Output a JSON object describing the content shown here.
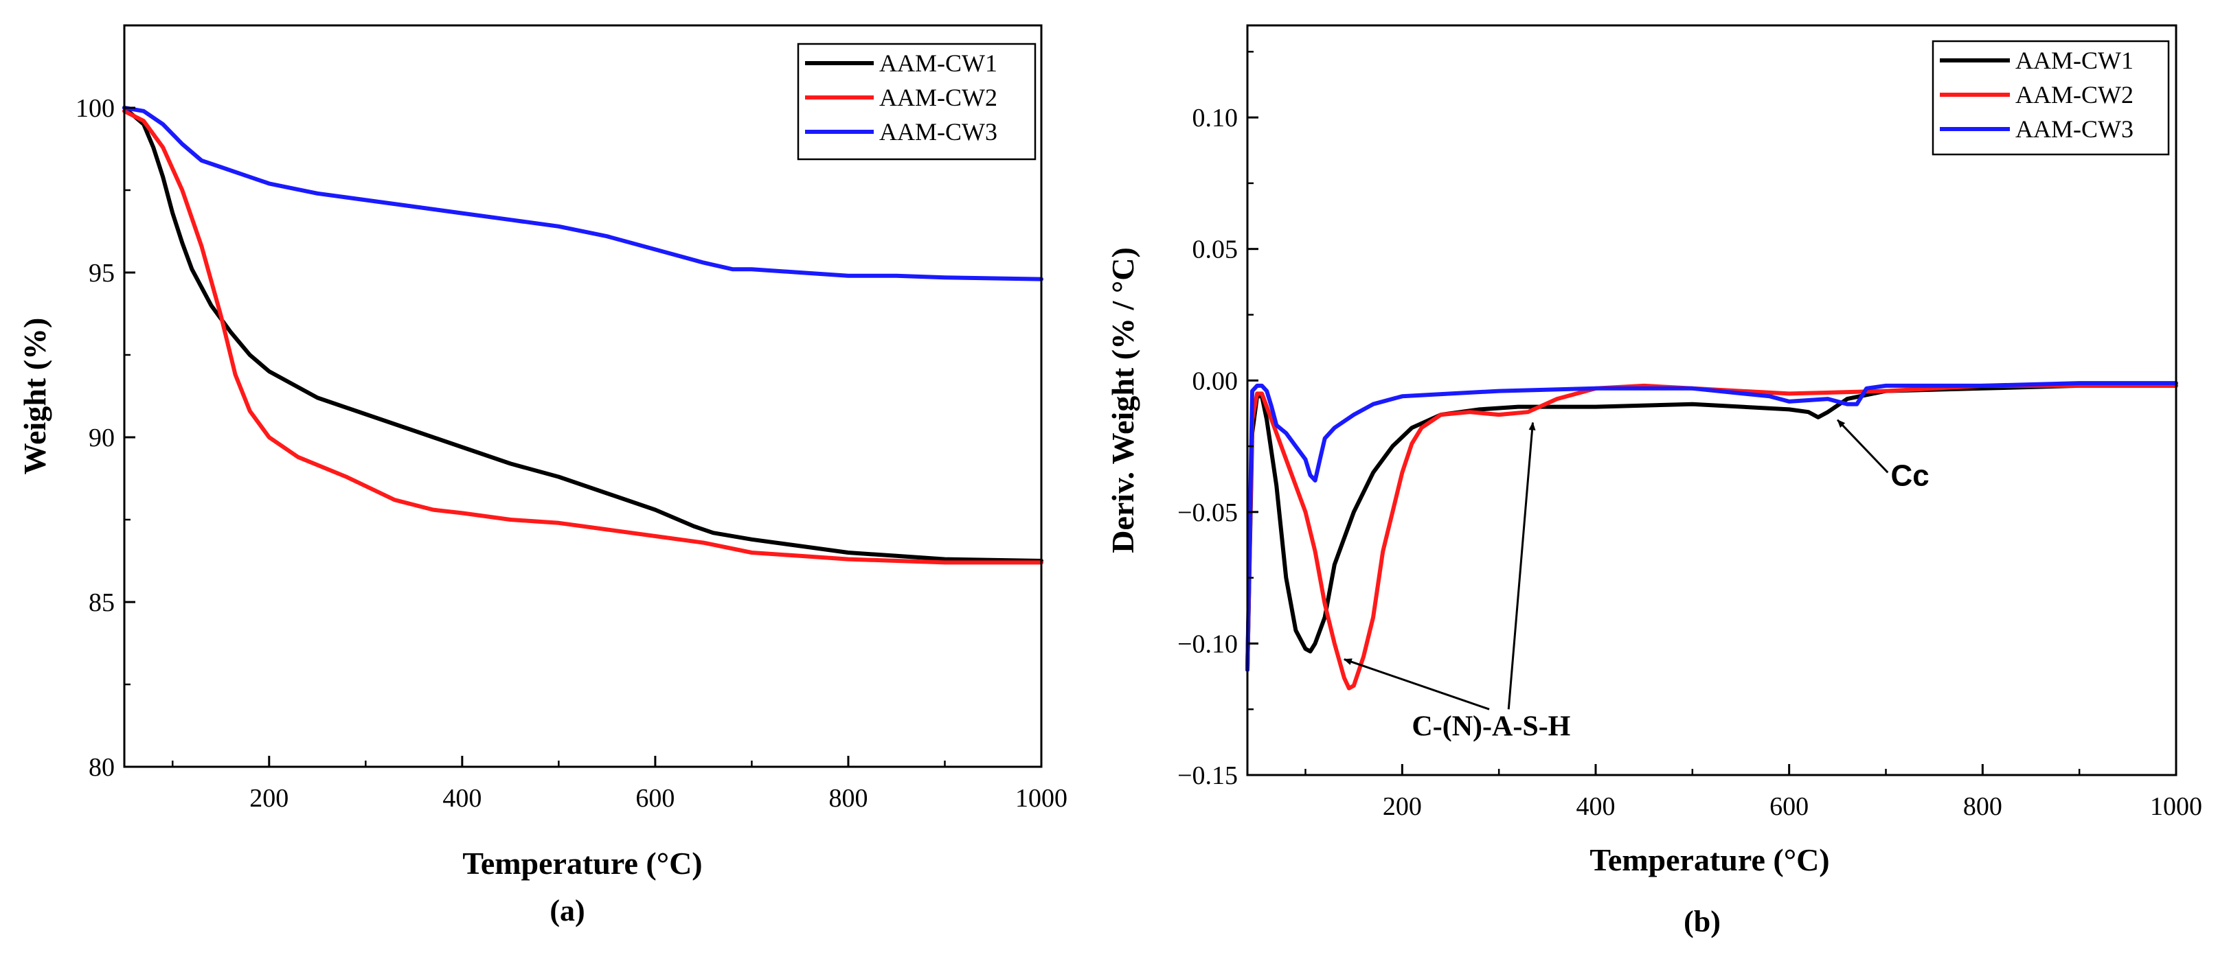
{
  "colors": {
    "series1": "#000000",
    "series2": "#ff1a1a",
    "series3": "#1a1aff"
  },
  "chart_data": [
    {
      "type": "line",
      "panel_label": "(a)",
      "xlabel": "Temperature (°C)",
      "ylabel": "Weight (%)",
      "xlim": [
        50,
        1000
      ],
      "ylim": [
        80,
        102.5
      ],
      "xticks": [
        200,
        400,
        600,
        800,
        1000
      ],
      "yticks": [
        80,
        85,
        90,
        95,
        100
      ],
      "legend_position": "top-right",
      "series": [
        {
          "name": "AAM-CW1",
          "color": "#000000",
          "x": [
            50,
            70,
            80,
            90,
            100,
            110,
            120,
            140,
            160,
            180,
            200,
            250,
            300,
            350,
            400,
            450,
            500,
            550,
            600,
            640,
            660,
            700,
            750,
            800,
            850,
            900,
            1000
          ],
          "y": [
            100,
            99.5,
            98.8,
            97.9,
            96.8,
            95.9,
            95.1,
            94,
            93.2,
            92.5,
            92,
            91.2,
            90.7,
            90.2,
            89.7,
            89.2,
            88.8,
            88.3,
            87.8,
            87.3,
            87.1,
            86.9,
            86.7,
            86.5,
            86.4,
            86.3,
            86.25
          ]
        },
        {
          "name": "AAM-CW2",
          "color": "#ff1a1a",
          "x": [
            50,
            70,
            90,
            110,
            130,
            150,
            165,
            180,
            200,
            230,
            280,
            330,
            370,
            400,
            450,
            500,
            550,
            600,
            650,
            700,
            750,
            800,
            900,
            1000
          ],
          "y": [
            99.9,
            99.6,
            98.8,
            97.5,
            95.8,
            93.7,
            91.9,
            90.8,
            90,
            89.4,
            88.8,
            88.1,
            87.8,
            87.7,
            87.5,
            87.4,
            87.2,
            87,
            86.8,
            86.5,
            86.4,
            86.3,
            86.2,
            86.2
          ]
        },
        {
          "name": "AAM-CW3",
          "color": "#1a1aff",
          "x": [
            50,
            70,
            90,
            110,
            130,
            150,
            180,
            200,
            250,
            300,
            350,
            400,
            450,
            500,
            550,
            600,
            650,
            680,
            700,
            750,
            800,
            850,
            900,
            1000
          ],
          "y": [
            100,
            99.9,
            99.5,
            98.9,
            98.4,
            98.2,
            97.9,
            97.7,
            97.4,
            97.2,
            97,
            96.8,
            96.6,
            96.4,
            96.1,
            95.7,
            95.3,
            95.1,
            95.1,
            95,
            94.9,
            94.9,
            94.85,
            94.8
          ]
        }
      ]
    },
    {
      "type": "line",
      "panel_label": "(b)",
      "xlabel": "Temperature (°C)",
      "ylabel": "Deriv. Weight (% / °C)",
      "xlim": [
        40,
        1000
      ],
      "ylim": [
        -0.15,
        0.135
      ],
      "xticks": [
        200,
        400,
        600,
        800,
        1000
      ],
      "yticks": [
        -0.15,
        -0.1,
        -0.05,
        0.0,
        0.05,
        0.1
      ],
      "ytick_labels": [
        "−0.15",
        "−0.10",
        "−0.05",
        "0.00",
        "0.05",
        "0.10"
      ],
      "legend_position": "top-right",
      "series": [
        {
          "name": "AAM-CW1",
          "color": "#000000",
          "x": [
            40,
            45,
            50,
            55,
            60,
            70,
            80,
            90,
            100,
            105,
            110,
            120,
            130,
            140,
            150,
            170,
            190,
            210,
            240,
            280,
            320,
            400,
            500,
            600,
            620,
            630,
            640,
            660,
            700,
            800,
            900,
            1000
          ],
          "y": [
            -0.11,
            -0.02,
            -0.006,
            -0.006,
            -0.015,
            -0.04,
            -0.075,
            -0.095,
            -0.102,
            -0.103,
            -0.1,
            -0.09,
            -0.07,
            -0.06,
            -0.05,
            -0.035,
            -0.025,
            -0.018,
            -0.013,
            -0.011,
            -0.01,
            -0.01,
            -0.009,
            -0.011,
            -0.012,
            -0.014,
            -0.012,
            -0.007,
            -0.004,
            -0.003,
            -0.002,
            -0.002
          ]
        },
        {
          "name": "AAM-CW2",
          "color": "#ff1a1a",
          "x": [
            40,
            45,
            50,
            55,
            60,
            70,
            80,
            90,
            100,
            110,
            120,
            130,
            140,
            145,
            150,
            160,
            170,
            180,
            190,
            200,
            210,
            220,
            240,
            270,
            300,
            330,
            360,
            400,
            450,
            500,
            600,
            700,
            800,
            900,
            1000
          ],
          "y": [
            -0.11,
            -0.015,
            -0.005,
            -0.005,
            -0.01,
            -0.02,
            -0.03,
            -0.04,
            -0.05,
            -0.065,
            -0.085,
            -0.1,
            -0.113,
            -0.117,
            -0.116,
            -0.105,
            -0.09,
            -0.065,
            -0.05,
            -0.035,
            -0.024,
            -0.018,
            -0.013,
            -0.012,
            -0.013,
            -0.012,
            -0.007,
            -0.003,
            -0.002,
            -0.003,
            -0.005,
            -0.004,
            -0.002,
            -0.002,
            -0.002
          ]
        },
        {
          "name": "AAM-CW3",
          "color": "#1a1aff",
          "x": [
            40,
            45,
            50,
            55,
            60,
            65,
            70,
            80,
            90,
            100,
            105,
            110,
            115,
            120,
            130,
            150,
            170,
            200,
            250,
            300,
            400,
            500,
            580,
            600,
            640,
            660,
            670,
            680,
            700,
            800,
            900,
            1000
          ],
          "y": [
            -0.11,
            -0.004,
            -0.002,
            -0.002,
            -0.004,
            -0.01,
            -0.017,
            -0.02,
            -0.025,
            -0.03,
            -0.036,
            -0.038,
            -0.03,
            -0.022,
            -0.018,
            -0.013,
            -0.009,
            -0.006,
            -0.005,
            -0.004,
            -0.003,
            -0.003,
            -0.006,
            -0.008,
            -0.007,
            -0.009,
            -0.009,
            -0.003,
            -0.002,
            -0.002,
            -0.001,
            -0.001
          ]
        }
      ],
      "annotations": [
        {
          "text": "C-(N)-A-S-H",
          "style": "serif",
          "label_at": [
            210,
            -0.135
          ],
          "arrows": [
            {
              "from": [
                290,
                -0.125
              ],
              "to": [
                140,
                -0.106
              ]
            },
            {
              "from": [
                310,
                -0.125
              ],
              "to": [
                335,
                -0.016
              ]
            }
          ]
        },
        {
          "text": "Cc",
          "style": "sans",
          "label_at": [
            705,
            -0.04
          ],
          "arrows": [
            {
              "from": [
                702,
                -0.035
              ],
              "to": [
                650,
                -0.015
              ]
            }
          ]
        }
      ]
    }
  ]
}
